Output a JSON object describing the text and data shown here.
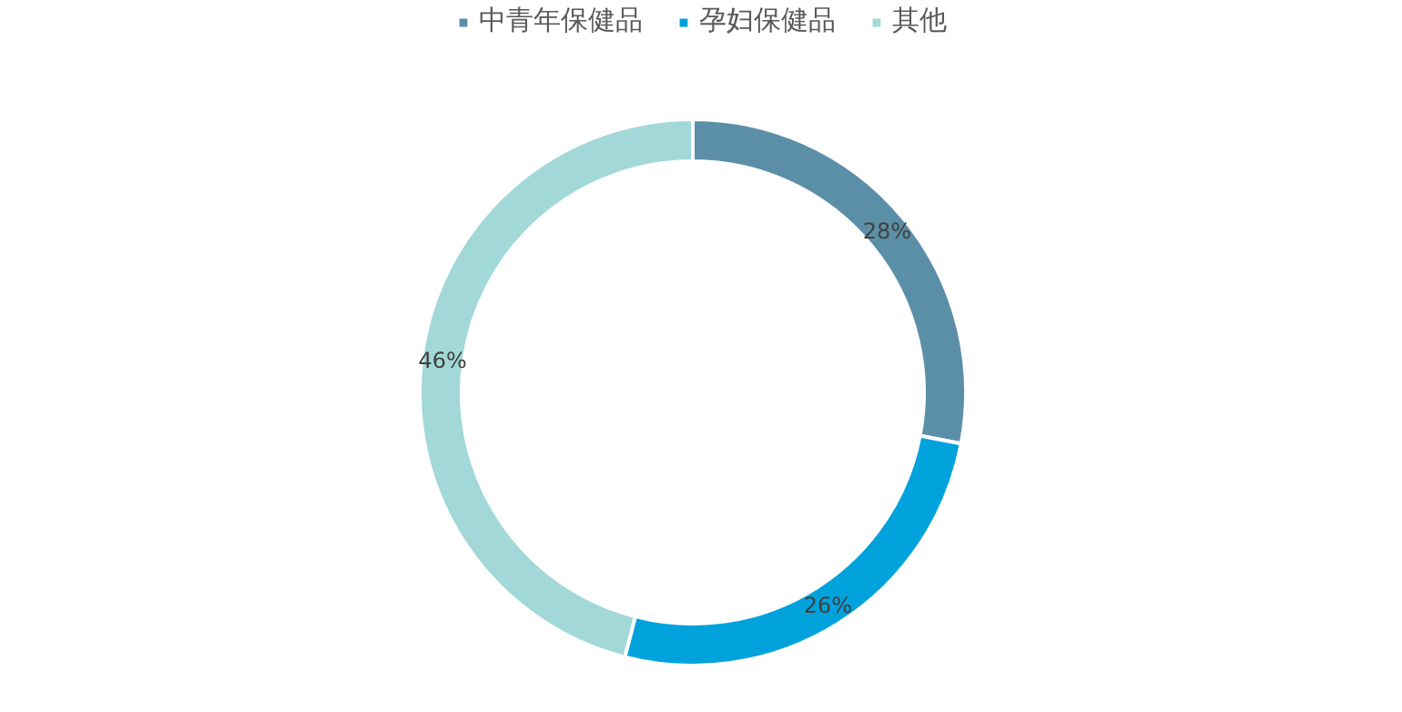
{
  "chart_data": {
    "type": "donut",
    "categories": [
      "中青年保健品",
      "孕妇保健品",
      "其他"
    ],
    "values": [
      28,
      26,
      46
    ],
    "colors": [
      "#5b8fa8",
      "#00a2dc",
      "#a2d8d8"
    ],
    "value_labels": [
      "28%",
      "26%",
      "46%"
    ],
    "legend": "top"
  }
}
